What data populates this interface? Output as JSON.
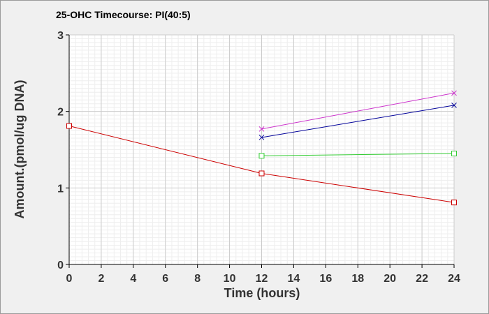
{
  "chart_data": {
    "type": "line",
    "title": "25-OHC Timecourse: PI(40:5)",
    "xlabel": "Time (hours)",
    "ylabel": "Amount.(pmol/ug DNA)",
    "xlim": [
      0,
      24
    ],
    "ylim": [
      0,
      3
    ],
    "xticks": [
      0,
      2,
      4,
      6,
      8,
      10,
      12,
      14,
      16,
      18,
      20,
      22,
      24
    ],
    "yticks": [
      0,
      1,
      2,
      3
    ],
    "grid": true,
    "legend": "none",
    "series": [
      {
        "color": "#cc0000",
        "marker": "square",
        "points": [
          [
            0,
            1.81
          ],
          [
            12,
            1.19
          ],
          [
            24,
            0.81
          ]
        ]
      },
      {
        "color": "#33cc33",
        "marker": "square",
        "points": [
          [
            12,
            1.42
          ],
          [
            24,
            1.45
          ]
        ]
      },
      {
        "color": "#000099",
        "marker": "x",
        "points": [
          [
            12,
            1.66
          ],
          [
            24,
            2.08
          ]
        ]
      },
      {
        "color": "#cc33cc",
        "marker": "x",
        "points": [
          [
            12,
            1.77
          ],
          [
            24,
            2.24
          ]
        ]
      }
    ]
  }
}
